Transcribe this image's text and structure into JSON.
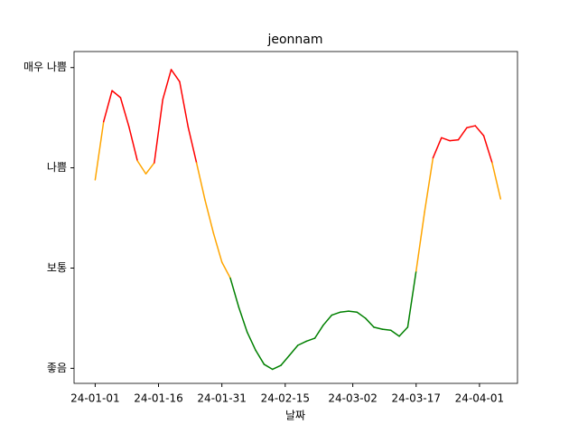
{
  "chart_data": {
    "type": "line",
    "title": "jeonnam",
    "x_label": "날짜",
    "x": [
      "24-01-01",
      "24-01-03",
      "24-01-05",
      "24-01-07",
      "24-01-09",
      "24-01-11",
      "24-01-13",
      "24-01-15",
      "24-01-17",
      "24-01-19",
      "24-01-21",
      "24-01-23",
      "24-01-25",
      "24-01-27",
      "24-01-29",
      "24-01-31",
      "24-02-02",
      "24-02-04",
      "24-02-06",
      "24-02-08",
      "24-02-10",
      "24-02-12",
      "24-02-14",
      "24-02-16",
      "24-02-18",
      "24-02-20",
      "24-02-22",
      "24-02-24",
      "24-02-26",
      "24-02-28",
      "24-03-01",
      "24-03-03",
      "24-03-05",
      "24-03-07",
      "24-03-09",
      "24-03-11",
      "24-03-13",
      "24-03-15",
      "24-03-17",
      "24-03-19",
      "24-03-21",
      "24-03-23",
      "24-03-25",
      "24-03-27",
      "24-03-29",
      "24-03-31",
      "24-04-02",
      "24-04-04",
      "24-04-06"
    ],
    "series": [
      {
        "values": [
          1.88,
          2.46,
          2.77,
          2.7,
          2.41,
          2.07,
          1.94,
          2.05,
          2.68,
          2.98,
          2.86,
          2.41,
          2.05,
          1.68,
          1.35,
          1.06,
          0.9,
          0.61,
          0.36,
          0.18,
          0.04,
          -0.01,
          0.03,
          0.13,
          0.23,
          0.27,
          0.3,
          0.43,
          0.53,
          0.56,
          0.57,
          0.56,
          0.5,
          0.41,
          0.39,
          0.38,
          0.32,
          0.41,
          0.97,
          1.56,
          2.1,
          2.3,
          2.27,
          2.28,
          2.4,
          2.42,
          2.32,
          2.05,
          1.69
        ],
        "segment_colors": [
          "orange",
          "red",
          "red",
          "red",
          "red",
          "orange",
          "orange",
          "red",
          "red",
          "red",
          "red",
          "red",
          "orange",
          "orange",
          "orange",
          "orange",
          "green",
          "green",
          "green",
          "green",
          "green",
          "green",
          "green",
          "green",
          "green",
          "green",
          "green",
          "green",
          "green",
          "green",
          "green",
          "green",
          "green",
          "green",
          "green",
          "green",
          "green",
          "green",
          "orange",
          "orange",
          "red",
          "red",
          "red",
          "red",
          "red",
          "red",
          "red",
          "orange"
        ]
      }
    ],
    "xlim": [
      "23-12-27",
      "24-04-10"
    ],
    "xticks": [
      "24-01-01",
      "24-01-16",
      "24-01-31",
      "24-02-15",
      "24-03-02",
      "24-03-17",
      "24-04-01"
    ],
    "ylim": [
      -0.15,
      3.16
    ],
    "yticks": [
      {
        "value": 0,
        "label": "좋음"
      },
      {
        "value": 1,
        "label": "보통"
      },
      {
        "value": 2,
        "label": "나쁨"
      },
      {
        "value": 3,
        "label": "매우 나쁨"
      }
    ]
  }
}
